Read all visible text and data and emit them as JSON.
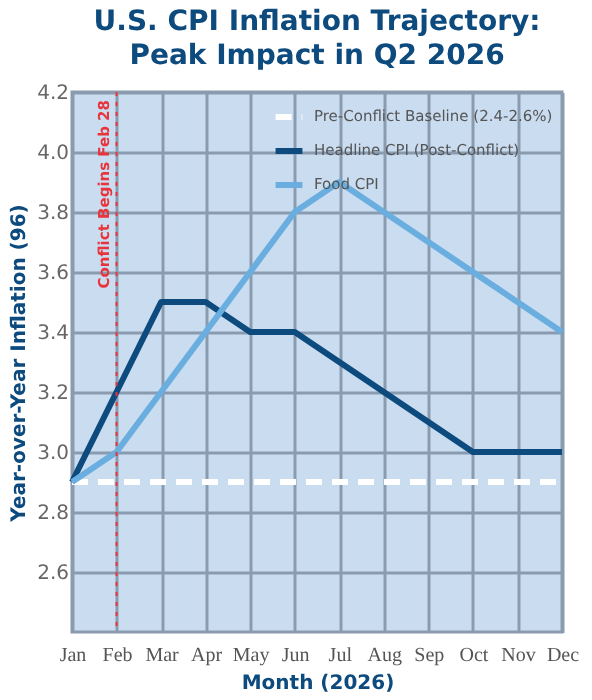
{
  "chart_data": {
    "type": "line",
    "title": [
      "U.S. CPI Inflation Trajectory:",
      "Peak Impact in Q2 2026"
    ],
    "xlabel": "Month (2026)",
    "ylabel": "Year-over-Year Inflation (96)",
    "categories": [
      "Jan",
      "Feb",
      "Mar",
      "Apr",
      "May",
      "Jun",
      "Jul",
      "Aug",
      "Sep",
      "Oct",
      "Nov",
      "Dec"
    ],
    "series": [
      {
        "name": "Pre-Conflict Baseline (2.4-2.6%)",
        "color": "#ffffff",
        "line_style": "dashed",
        "values": [
          2.9,
          2.9,
          2.9,
          2.9,
          2.9,
          2.9,
          2.9,
          2.9,
          2.9,
          2.9,
          2.9,
          2.9
        ]
      },
      {
        "name": "Headline CPI (Post-Conflict)",
        "color": "#0d4a7e",
        "line_style": "solid",
        "values": [
          2.9,
          3.2,
          3.5,
          3.5,
          3.4,
          3.4,
          3.3,
          3.2,
          3.1,
          3.0,
          3.0,
          3.0
        ]
      },
      {
        "name": "Food CPI",
        "color": "#6aaee0",
        "line_style": "solid",
        "values": [
          2.9,
          3.0,
          3.2,
          3.4,
          3.6,
          3.8,
          3.9,
          3.8,
          3.7,
          3.6,
          3.5,
          3.4
        ]
      }
    ],
    "ylim": [
      2.4,
      4.2
    ],
    "yticks": [
      2.6,
      2.8,
      {
        "value": 3,
        "label": "3.0"
      },
      3.2,
      3.4,
      3.6,
      3.8,
      {
        "value": 4,
        "label": "4.0"
      },
      4.2
    ],
    "grid": true,
    "legend": "top right",
    "ref_lines": [
      {
        "axis": "x",
        "value": "Feb",
        "label": "Conflict Begins Feb 28",
        "color": "#e8343a",
        "line_style": "dotted"
      }
    ]
  }
}
